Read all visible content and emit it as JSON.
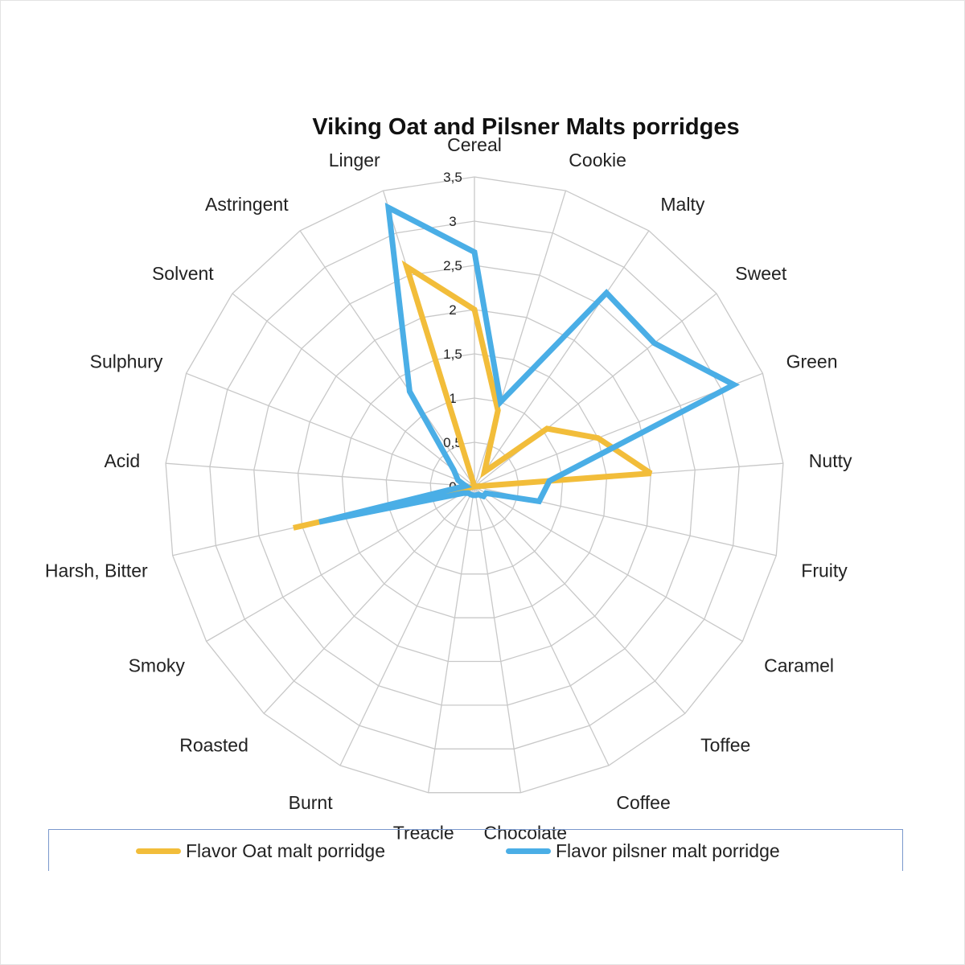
{
  "chart_data": {
    "type": "radar",
    "title": "Viking Oat and Pilsner Malts porridges",
    "categories": [
      "Cereal",
      "Cookie",
      "Malty",
      "Sweet",
      "Green",
      "Nutty",
      "Fruity",
      "Caramel",
      "Toffee",
      "Coffee",
      "Chocolate",
      "Treacle",
      "Burnt",
      "Roasted",
      "Smoky",
      "Harsh, Bitter",
      "Acid",
      "Sulphury",
      "Solvent",
      "Astringent",
      "Linger"
    ],
    "rlim": [
      0,
      3.5
    ],
    "ticks": [
      0,
      0.5,
      1,
      1.5,
      2,
      2.5,
      3,
      3.5
    ],
    "tick_labels": [
      "0",
      "0,5",
      "1",
      "1,5",
      "2",
      "2,5",
      "3",
      "3,5"
    ],
    "grid": true,
    "legend_position": "bottom",
    "series": [
      {
        "name": "Flavor Oat malt porridge",
        "color": "#f2bd3a",
        "values": [
          2.0,
          0.9,
          0.2,
          1.05,
          1.5,
          2.0,
          0.0,
          0.0,
          0.0,
          0.0,
          0.0,
          0.0,
          0.0,
          0.0,
          0.0,
          2.1,
          0.0,
          0.0,
          0.0,
          0.0,
          2.6
        ]
      },
      {
        "name": "Flavor pilsner malt porridge",
        "color": "#4aaee6",
        "values": [
          2.65,
          1.0,
          2.65,
          2.6,
          3.15,
          0.85,
          0.75,
          0.15,
          0.15,
          0.1,
          0.1,
          0.1,
          0.1,
          0.1,
          0.15,
          1.8,
          0.1,
          0.2,
          0.3,
          1.3,
          3.3
        ]
      }
    ]
  }
}
